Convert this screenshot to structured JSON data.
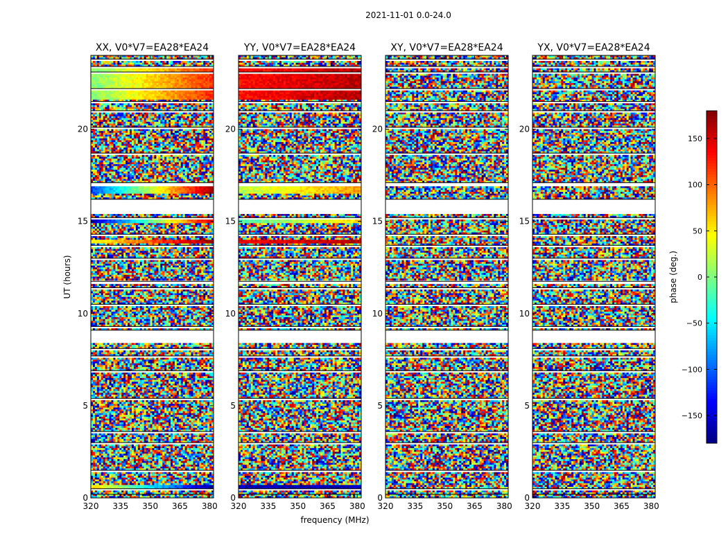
{
  "figure": {
    "suptitle": "2021-11-01 0.0-24.0"
  },
  "colors": {
    "background": "#ffffff",
    "axis": "#000000"
  },
  "chart_data": {
    "type": "heatmap",
    "title": "2021-11-01 0.0-24.0",
    "xlabel": "frequency (MHz)",
    "ylabel": "UT (hours)",
    "xlim": [
      320,
      382
    ],
    "ylim": [
      0,
      24
    ],
    "xticks": [
      320,
      335,
      350,
      365,
      380
    ],
    "yticks": [
      0,
      5,
      10,
      15,
      20
    ],
    "panels": [
      {
        "name": "XX",
        "title": "XX, V0*V7=EA28*EA24"
      },
      {
        "name": "YY",
        "title": "YY, V0*V7=EA28*EA24"
      },
      {
        "name": "XY",
        "title": "XY, V0*V7=EA28*EA24"
      },
      {
        "name": "YX",
        "title": "YX, V0*V7=EA28*EA24"
      }
    ],
    "colorbar": {
      "label": "phase (deg.)",
      "range": [
        -180,
        180
      ],
      "ticks": [
        -150,
        -100,
        -50,
        0,
        50,
        100,
        150
      ],
      "colormap": "jet"
    },
    "flagged_gaps_hours": [
      [
        0.15,
        0.2
      ],
      [
        0.4,
        0.5
      ],
      [
        1.4,
        1.5
      ],
      [
        2.9,
        3.0
      ],
      [
        3.5,
        3.6
      ],
      [
        5.3,
        5.4
      ],
      [
        6.8,
        6.9
      ],
      [
        7.6,
        7.7
      ],
      [
        8.0,
        8.1
      ],
      [
        8.45,
        9.1
      ],
      [
        9.2,
        9.3
      ],
      [
        10.4,
        10.5
      ],
      [
        11.3,
        11.4
      ],
      [
        11.6,
        11.75
      ],
      [
        12.9,
        13.0
      ],
      [
        13.6,
        13.7
      ],
      [
        14.2,
        14.3
      ],
      [
        15.1,
        15.2
      ],
      [
        15.4,
        16.2
      ],
      [
        16.9,
        17.1
      ],
      [
        18.6,
        18.7
      ],
      [
        20.0,
        20.1
      ],
      [
        20.9,
        21.0
      ],
      [
        21.4,
        21.5
      ],
      [
        22.1,
        22.2
      ],
      [
        23.0,
        23.1
      ],
      [
        23.3,
        23.4
      ],
      [
        23.7,
        23.8
      ]
    ],
    "coherent_segments": [
      {
        "panel": "XX",
        "t": [
          0.5,
          0.7
        ],
        "phase": [
          60,
          -170
        ]
      },
      {
        "panel": "XX",
        "t": [
          16.5,
          16.9
        ],
        "phase": [
          -110,
          170
        ]
      },
      {
        "panel": "XX",
        "t": [
          13.8,
          14.0
        ],
        "phase": [
          40,
          170
        ]
      },
      {
        "panel": "XX",
        "t": [
          14.9,
          15.1
        ],
        "phase": [
          -160,
          150
        ]
      },
      {
        "panel": "XX",
        "t": [
          21.6,
          23.4
        ],
        "phase": [
          0,
          120
        ]
      },
      {
        "panel": "YY",
        "t": [
          0.5,
          0.7
        ],
        "phase": [
          -160,
          -160
        ]
      },
      {
        "panel": "YY",
        "t": [
          16.5,
          16.9
        ],
        "phase": [
          20,
          80
        ]
      },
      {
        "panel": "YY",
        "t": [
          13.8,
          14.0
        ],
        "phase": [
          140,
          160
        ]
      },
      {
        "panel": "YY",
        "t": [
          14.9,
          15.1
        ],
        "phase": [
          -20,
          60
        ]
      },
      {
        "panel": "YY",
        "t": [
          21.6,
          23.4
        ],
        "phase": [
          130,
          160
        ]
      }
    ]
  }
}
